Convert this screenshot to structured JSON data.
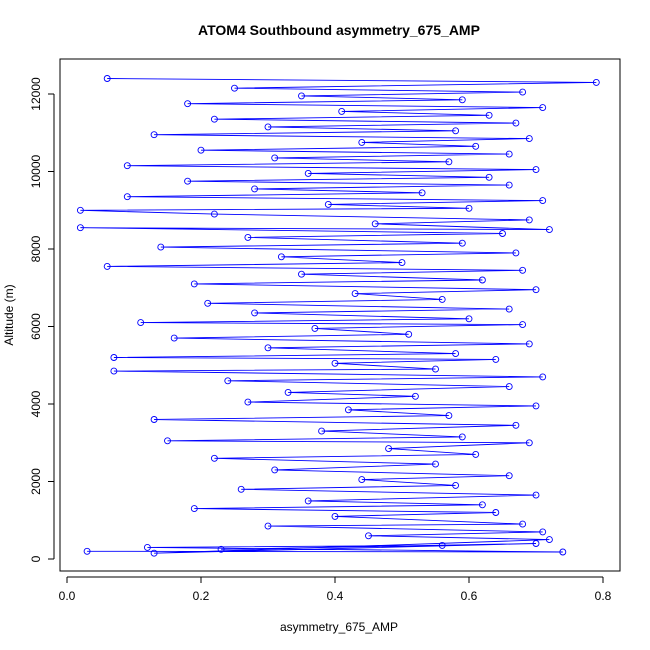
{
  "chart_data": {
    "type": "scatter",
    "title": "ATOM4 Southbound asymmetry_675_AMP",
    "xlabel": "asymmetry_675_AMP",
    "ylabel": "Altitude (m)",
    "xlim": [
      0.0,
      0.8
    ],
    "ylim": [
      0,
      12400
    ],
    "x_ticks": [
      0.0,
      0.2,
      0.4,
      0.6,
      0.8
    ],
    "x_tick_labels": [
      "0.0",
      "0.2",
      "0.4",
      "0.6",
      "0.8"
    ],
    "y_ticks": [
      0,
      2000,
      4000,
      6000,
      8000,
      10000,
      12000
    ],
    "y_tick_labels": [
      "0",
      "2000",
      "4000",
      "6000",
      "8000",
      "10000",
      "12000"
    ],
    "grid": false,
    "legend": "none",
    "connected": true,
    "marker": "open-circle",
    "color": "#0000ff",
    "series": [
      {
        "points": [
          [
            0.03,
            200
          ],
          [
            0.74,
            180
          ],
          [
            0.12,
            300
          ],
          [
            0.56,
            350
          ],
          [
            0.23,
            250
          ],
          [
            0.7,
            400
          ],
          [
            0.13,
            150
          ],
          [
            0.72,
            500
          ],
          [
            0.45,
            600
          ],
          [
            0.71,
            700
          ],
          [
            0.3,
            850
          ],
          [
            0.68,
            900
          ],
          [
            0.4,
            1100
          ],
          [
            0.64,
            1200
          ],
          [
            0.19,
            1300
          ],
          [
            0.62,
            1400
          ],
          [
            0.36,
            1500
          ],
          [
            0.7,
            1650
          ],
          [
            0.26,
            1800
          ],
          [
            0.58,
            1900
          ],
          [
            0.44,
            2050
          ],
          [
            0.66,
            2150
          ],
          [
            0.31,
            2300
          ],
          [
            0.55,
            2450
          ],
          [
            0.22,
            2600
          ],
          [
            0.61,
            2700
          ],
          [
            0.48,
            2850
          ],
          [
            0.69,
            3000
          ],
          [
            0.15,
            3050
          ],
          [
            0.59,
            3150
          ],
          [
            0.38,
            3300
          ],
          [
            0.67,
            3450
          ],
          [
            0.13,
            3600
          ],
          [
            0.57,
            3700
          ],
          [
            0.42,
            3850
          ],
          [
            0.7,
            3950
          ],
          [
            0.27,
            4050
          ],
          [
            0.52,
            4200
          ],
          [
            0.33,
            4300
          ],
          [
            0.66,
            4450
          ],
          [
            0.24,
            4600
          ],
          [
            0.71,
            4700
          ],
          [
            0.07,
            4850
          ],
          [
            0.55,
            4900
          ],
          [
            0.4,
            5050
          ],
          [
            0.64,
            5150
          ],
          [
            0.07,
            5200
          ],
          [
            0.58,
            5300
          ],
          [
            0.3,
            5450
          ],
          [
            0.69,
            5550
          ],
          [
            0.16,
            5700
          ],
          [
            0.51,
            5800
          ],
          [
            0.37,
            5950
          ],
          [
            0.68,
            6050
          ],
          [
            0.11,
            6100
          ],
          [
            0.6,
            6200
          ],
          [
            0.28,
            6350
          ],
          [
            0.66,
            6450
          ],
          [
            0.21,
            6600
          ],
          [
            0.56,
            6700
          ],
          [
            0.43,
            6850
          ],
          [
            0.7,
            6950
          ],
          [
            0.19,
            7100
          ],
          [
            0.62,
            7200
          ],
          [
            0.35,
            7350
          ],
          [
            0.68,
            7450
          ],
          [
            0.06,
            7550
          ],
          [
            0.5,
            7650
          ],
          [
            0.32,
            7800
          ],
          [
            0.67,
            7900
          ],
          [
            0.14,
            8050
          ],
          [
            0.59,
            8150
          ],
          [
            0.27,
            8300
          ],
          [
            0.65,
            8400
          ],
          [
            0.02,
            8550
          ],
          [
            0.72,
            8500
          ],
          [
            0.46,
            8650
          ],
          [
            0.69,
            8750
          ],
          [
            0.22,
            8900
          ],
          [
            0.02,
            9000
          ],
          [
            0.6,
            9050
          ],
          [
            0.39,
            9150
          ],
          [
            0.71,
            9250
          ],
          [
            0.09,
            9350
          ],
          [
            0.53,
            9450
          ],
          [
            0.28,
            9550
          ],
          [
            0.66,
            9650
          ],
          [
            0.18,
            9750
          ],
          [
            0.63,
            9850
          ],
          [
            0.36,
            9950
          ],
          [
            0.7,
            10050
          ],
          [
            0.09,
            10150
          ],
          [
            0.57,
            10250
          ],
          [
            0.31,
            10350
          ],
          [
            0.66,
            10450
          ],
          [
            0.2,
            10550
          ],
          [
            0.61,
            10650
          ],
          [
            0.44,
            10750
          ],
          [
            0.69,
            10850
          ],
          [
            0.13,
            10950
          ],
          [
            0.58,
            11050
          ],
          [
            0.3,
            11150
          ],
          [
            0.67,
            11250
          ],
          [
            0.22,
            11350
          ],
          [
            0.63,
            11450
          ],
          [
            0.41,
            11550
          ],
          [
            0.71,
            11650
          ],
          [
            0.18,
            11750
          ],
          [
            0.59,
            11850
          ],
          [
            0.35,
            11950
          ],
          [
            0.68,
            12050
          ],
          [
            0.25,
            12150
          ],
          [
            0.79,
            12300
          ],
          [
            0.06,
            12400
          ]
        ]
      }
    ]
  }
}
